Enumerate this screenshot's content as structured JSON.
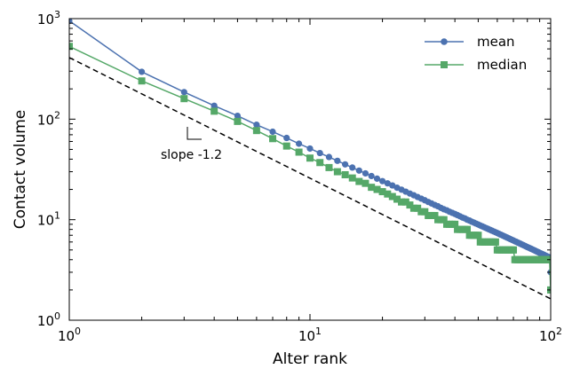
{
  "chart_data": {
    "type": "line",
    "xlabel": "Alter rank",
    "ylabel": "Contact volume",
    "xscale": "log",
    "yscale": "log",
    "xlim": [
      1,
      100
    ],
    "ylim": [
      1,
      1000
    ],
    "x_ticks": [
      {
        "base": "10",
        "exp": "0"
      },
      {
        "base": "10",
        "exp": "1"
      },
      {
        "base": "10",
        "exp": "2"
      }
    ],
    "y_ticks": [
      {
        "base": "10",
        "exp": "0"
      },
      {
        "base": "10",
        "exp": "1"
      },
      {
        "base": "10",
        "exp": "2"
      },
      {
        "base": "10",
        "exp": "3"
      }
    ],
    "legend_position": "top-right",
    "grid": false,
    "series": [
      {
        "name": "mean",
        "color": "#4c72b0",
        "marker": "circle",
        "x": [
          1,
          2,
          3,
          4,
          5,
          6,
          7,
          8,
          9,
          10,
          11,
          12,
          13,
          14,
          15,
          16,
          17,
          18,
          19,
          20,
          21,
          22,
          23,
          24,
          25,
          26,
          27,
          28,
          29,
          30,
          31,
          32,
          33,
          34,
          35,
          36,
          37,
          38,
          39,
          40,
          41,
          42,
          43,
          44,
          45,
          46,
          47,
          48,
          49,
          50,
          51,
          52,
          53,
          54,
          55,
          56,
          57,
          58,
          59,
          60,
          61,
          62,
          63,
          64,
          65,
          66,
          67,
          68,
          69,
          70,
          71,
          72,
          73,
          74,
          75,
          76,
          77,
          78,
          79,
          80,
          81,
          82,
          83,
          84,
          85,
          86,
          87,
          88,
          89,
          90,
          91,
          92,
          93,
          94,
          95,
          96,
          97,
          98,
          99,
          100
        ],
        "y": [
          950,
          296,
          186,
          136,
          108,
          88,
          75,
          65,
          57,
          51,
          46,
          42,
          38.5,
          35.5,
          33,
          30.8,
          28.9,
          27.2,
          25.6,
          24.2,
          23,
          21.9,
          20.8,
          19.9,
          19,
          18.2,
          17.5,
          16.8,
          16.2,
          15.6,
          15,
          14.5,
          14,
          13.6,
          13.1,
          12.7,
          12.4,
          12,
          11.7,
          11.4,
          11.1,
          10.8,
          10.5,
          10.3,
          10,
          9.8,
          9.55,
          9.35,
          9.15,
          8.95,
          8.75,
          8.58,
          8.4,
          8.24,
          8.08,
          7.93,
          7.78,
          7.64,
          7.5,
          7.36,
          7.23,
          7.1,
          6.98,
          6.86,
          6.74,
          6.63,
          6.52,
          6.41,
          6.31,
          6.21,
          6.11,
          6.02,
          5.92,
          5.83,
          5.75,
          5.66,
          5.58,
          5.5,
          5.42,
          5.34,
          5.27,
          5.2,
          5.13,
          5.06,
          4.99,
          4.93,
          4.86,
          4.8,
          4.74,
          4.68,
          4.62,
          4.57,
          4.51,
          4.46,
          4.4,
          4.35,
          4.3,
          4.25,
          4.2,
          3.0
        ]
      },
      {
        "name": "median",
        "color": "#55a868",
        "marker": "square",
        "x": [
          1,
          2,
          3,
          4,
          5,
          6,
          7,
          8,
          9,
          10,
          11,
          12,
          13,
          14,
          15,
          16,
          17,
          18,
          19,
          20,
          21,
          22,
          23,
          24,
          25,
          26,
          27,
          28,
          29,
          30,
          31,
          32,
          33,
          34,
          35,
          36,
          37,
          38,
          39,
          40,
          41,
          42,
          43,
          44,
          45,
          46,
          47,
          48,
          49,
          50,
          51,
          52,
          53,
          54,
          55,
          56,
          57,
          58,
          59,
          60,
          61,
          62,
          63,
          64,
          65,
          66,
          67,
          68,
          69,
          70,
          71,
          72,
          73,
          74,
          75,
          76,
          77,
          78,
          79,
          80,
          81,
          82,
          83,
          84,
          85,
          86,
          87,
          88,
          89,
          90,
          91,
          92,
          93,
          94,
          95,
          96,
          97,
          98,
          99,
          100
        ],
        "y": [
          530,
          240,
          160,
          120,
          95,
          77,
          64,
          54,
          47,
          41,
          37,
          33,
          30,
          28,
          26,
          24,
          23,
          21,
          20,
          19,
          18,
          17,
          16,
          15,
          15,
          14,
          13,
          13,
          12,
          12,
          11,
          11,
          11,
          10,
          10,
          10,
          9,
          9,
          9,
          9,
          8,
          8,
          8,
          8,
          8,
          7,
          7,
          7,
          7,
          7,
          6,
          6,
          6,
          6,
          6,
          6,
          6,
          6,
          6,
          5,
          5,
          5,
          5,
          5,
          5,
          5,
          5,
          5,
          5,
          5,
          4,
          4,
          4,
          4,
          4,
          4,
          4,
          4,
          4,
          4,
          4,
          4,
          4,
          4,
          4,
          4,
          4,
          4,
          4,
          4,
          4,
          4,
          4,
          4,
          4,
          4,
          4,
          4,
          4,
          2
        ]
      }
    ],
    "reference_line": {
      "style": "dashed",
      "color": "#000000",
      "slope": -1.2,
      "intercept_at_x1": 410,
      "label": "slope -1.2"
    }
  }
}
